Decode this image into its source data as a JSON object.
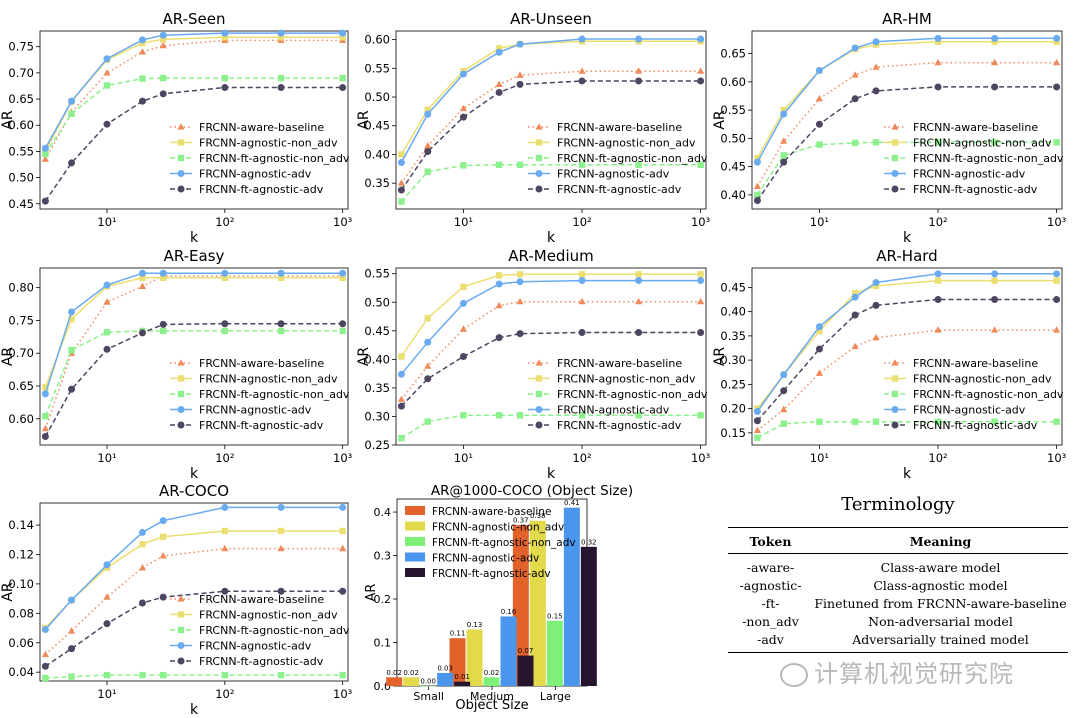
{
  "chart_data": [
    {
      "type": "line",
      "title": "AR-Seen",
      "xlabel": "k",
      "ylabel": "AR",
      "xscale": "log",
      "x": [
        3,
        5,
        10,
        20,
        30,
        100,
        300,
        1000
      ],
      "ylim": [
        0.44,
        0.78
      ],
      "yticks": [
        0.45,
        0.5,
        0.55,
        0.6,
        0.65,
        0.7,
        0.75
      ],
      "ytick_labels": [
        "0.45",
        "0.50",
        "0.55",
        "0.60",
        "0.65",
        "0.70",
        "0.75"
      ],
      "legend_position": "lower-right",
      "series": [
        {
          "name": "FRCNN-aware-baseline",
          "values": [
            0.535,
            0.625,
            0.7,
            0.74,
            0.752,
            0.762,
            0.762,
            0.762
          ]
        },
        {
          "name": "FRCNN-agnostic-non_adv",
          "values": [
            0.55,
            0.645,
            0.725,
            0.757,
            0.764,
            0.768,
            0.768,
            0.768
          ]
        },
        {
          "name": "FRCNN-ft-agnostic-non_adv",
          "values": [
            0.545,
            0.622,
            0.676,
            0.689,
            0.69,
            0.69,
            0.69,
            0.69
          ]
        },
        {
          "name": "FRCNN-agnostic-adv",
          "values": [
            0.556,
            0.646,
            0.727,
            0.763,
            0.772,
            0.776,
            0.776,
            0.776
          ]
        },
        {
          "name": "FRCNN-ft-agnostic-adv",
          "values": [
            0.455,
            0.528,
            0.602,
            0.646,
            0.66,
            0.672,
            0.672,
            0.672
          ]
        }
      ]
    },
    {
      "type": "line",
      "title": "AR-Unseen",
      "xlabel": "k",
      "ylabel": "AR",
      "xscale": "log",
      "x": [
        3,
        5,
        10,
        20,
        30,
        100,
        300,
        1000
      ],
      "ylim": [
        0.305,
        0.615
      ],
      "yticks": [
        0.35,
        0.4,
        0.45,
        0.5,
        0.55,
        0.6
      ],
      "ytick_labels": [
        "0.35",
        "0.40",
        "0.45",
        "0.50",
        "0.55",
        "0.60"
      ],
      "legend_position": "lower-right",
      "series": [
        {
          "name": "FRCNN-aware-baseline",
          "values": [
            0.35,
            0.415,
            0.48,
            0.522,
            0.538,
            0.545,
            0.545,
            0.545
          ]
        },
        {
          "name": "FRCNN-agnostic-non_adv",
          "values": [
            0.4,
            0.478,
            0.545,
            0.585,
            0.592,
            0.597,
            0.597,
            0.597
          ]
        },
        {
          "name": "FRCNN-ft-agnostic-non_adv",
          "values": [
            0.318,
            0.37,
            0.381,
            0.382,
            0.382,
            0.382,
            0.382,
            0.382
          ]
        },
        {
          "name": "FRCNN-agnostic-adv",
          "values": [
            0.386,
            0.47,
            0.54,
            0.578,
            0.592,
            0.601,
            0.601,
            0.601
          ]
        },
        {
          "name": "FRCNN-ft-agnostic-adv",
          "values": [
            0.338,
            0.405,
            0.465,
            0.508,
            0.522,
            0.528,
            0.528,
            0.528
          ]
        }
      ]
    },
    {
      "type": "line",
      "title": "AR-HM",
      "xlabel": "k",
      "ylabel": "AR",
      "xscale": "log",
      "x": [
        3,
        5,
        10,
        20,
        30,
        100,
        300,
        1000
      ],
      "ylim": [
        0.375,
        0.69
      ],
      "yticks": [
        0.4,
        0.45,
        0.5,
        0.55,
        0.6,
        0.65
      ],
      "ytick_labels": [
        "0.40",
        "0.45",
        "0.50",
        "0.55",
        "0.60",
        "0.65"
      ],
      "legend_position": "lower-right",
      "series": [
        {
          "name": "FRCNN-aware-baseline",
          "values": [
            0.415,
            0.495,
            0.57,
            0.612,
            0.626,
            0.634,
            0.634,
            0.634
          ]
        },
        {
          "name": "FRCNN-agnostic-non_adv",
          "values": [
            0.465,
            0.55,
            0.62,
            0.658,
            0.666,
            0.671,
            0.671,
            0.671
          ]
        },
        {
          "name": "FRCNN-ft-agnostic-non_adv",
          "values": [
            0.4,
            0.47,
            0.489,
            0.492,
            0.493,
            0.493,
            0.493,
            0.493
          ]
        },
        {
          "name": "FRCNN-agnostic-adv",
          "values": [
            0.458,
            0.543,
            0.62,
            0.66,
            0.671,
            0.677,
            0.677,
            0.677
          ]
        },
        {
          "name": "FRCNN-ft-agnostic-adv",
          "values": [
            0.39,
            0.458,
            0.525,
            0.57,
            0.584,
            0.591,
            0.591,
            0.591
          ]
        }
      ]
    },
    {
      "type": "line",
      "title": "AR-Easy",
      "xlabel": "k",
      "ylabel": "AR",
      "xscale": "log",
      "x": [
        3,
        5,
        10,
        20,
        30,
        100,
        300,
        1000
      ],
      "ylim": [
        0.56,
        0.83
      ],
      "yticks": [
        0.6,
        0.65,
        0.7,
        0.75,
        0.8
      ],
      "ytick_labels": [
        "0.60",
        "0.65",
        "0.70",
        "0.75",
        "0.80"
      ],
      "legend_position": "lower-right",
      "series": [
        {
          "name": "FRCNN-aware-baseline",
          "values": [
            0.585,
            0.7,
            0.778,
            0.802,
            0.818,
            0.818,
            0.818,
            0.818
          ]
        },
        {
          "name": "FRCNN-agnostic-non_adv",
          "values": [
            0.648,
            0.752,
            0.802,
            0.815,
            0.815,
            0.815,
            0.815,
            0.815
          ]
        },
        {
          "name": "FRCNN-ft-agnostic-non_adv",
          "values": [
            0.604,
            0.705,
            0.732,
            0.734,
            0.734,
            0.734,
            0.734,
            0.734
          ]
        },
        {
          "name": "FRCNN-agnostic-adv",
          "values": [
            0.638,
            0.763,
            0.804,
            0.822,
            0.822,
            0.822,
            0.822,
            0.822
          ]
        },
        {
          "name": "FRCNN-ft-agnostic-adv",
          "values": [
            0.573,
            0.645,
            0.706,
            0.731,
            0.744,
            0.745,
            0.745,
            0.745
          ]
        }
      ]
    },
    {
      "type": "line",
      "title": "AR-Medium",
      "xlabel": "k",
      "ylabel": "AR",
      "xscale": "log",
      "x": [
        3,
        5,
        10,
        20,
        30,
        100,
        300,
        1000
      ],
      "ylim": [
        0.25,
        0.56
      ],
      "yticks": [
        0.25,
        0.3,
        0.35,
        0.4,
        0.45,
        0.5,
        0.55
      ],
      "ytick_labels": [
        "0.25",
        "0.30",
        "0.35",
        "0.40",
        "0.45",
        "0.50",
        "0.55"
      ],
      "legend_position": "lower-right",
      "series": [
        {
          "name": "FRCNN-aware-baseline",
          "values": [
            0.33,
            0.388,
            0.453,
            0.494,
            0.501,
            0.501,
            0.501,
            0.501
          ]
        },
        {
          "name": "FRCNN-agnostic-non_adv",
          "values": [
            0.405,
            0.472,
            0.527,
            0.547,
            0.549,
            0.549,
            0.549,
            0.549
          ]
        },
        {
          "name": "FRCNN-ft-agnostic-non_adv",
          "values": [
            0.262,
            0.291,
            0.302,
            0.302,
            0.302,
            0.302,
            0.302,
            0.302
          ]
        },
        {
          "name": "FRCNN-agnostic-adv",
          "values": [
            0.374,
            0.43,
            0.498,
            0.532,
            0.536,
            0.538,
            0.538,
            0.538
          ]
        },
        {
          "name": "FRCNN-ft-agnostic-adv",
          "values": [
            0.318,
            0.366,
            0.405,
            0.438,
            0.445,
            0.447,
            0.447,
            0.447
          ]
        }
      ]
    },
    {
      "type": "line",
      "title": "AR-Hard",
      "xlabel": "k",
      "ylabel": "AR",
      "xscale": "log",
      "x": [
        3,
        5,
        10,
        20,
        30,
        100,
        300,
        1000
      ],
      "ylim": [
        0.125,
        0.49
      ],
      "yticks": [
        0.15,
        0.2,
        0.25,
        0.3,
        0.35,
        0.4,
        0.45
      ],
      "ytick_labels": [
        "0.15",
        "0.20",
        "0.25",
        "0.30",
        "0.35",
        "0.40",
        "0.45"
      ],
      "legend_position": "lower-right",
      "series": [
        {
          "name": "FRCNN-aware-baseline",
          "values": [
            0.155,
            0.198,
            0.273,
            0.328,
            0.346,
            0.362,
            0.362,
            0.362
          ]
        },
        {
          "name": "FRCNN-agnostic-non_adv",
          "values": [
            0.2,
            0.27,
            0.36,
            0.438,
            0.453,
            0.464,
            0.464,
            0.464
          ]
        },
        {
          "name": "FRCNN-ft-agnostic-non_adv",
          "values": [
            0.14,
            0.169,
            0.173,
            0.173,
            0.173,
            0.173,
            0.173,
            0.173
          ]
        },
        {
          "name": "FRCNN-agnostic-adv",
          "values": [
            0.194,
            0.27,
            0.369,
            0.43,
            0.46,
            0.478,
            0.478,
            0.478
          ]
        },
        {
          "name": "FRCNN-ft-agnostic-adv",
          "values": [
            0.175,
            0.237,
            0.323,
            0.393,
            0.413,
            0.425,
            0.425,
            0.425
          ]
        }
      ]
    },
    {
      "type": "line",
      "title": "AR-COCO",
      "xlabel": "k",
      "ylabel": "AR",
      "xscale": "log",
      "x": [
        3,
        5,
        10,
        20,
        30,
        100,
        300,
        1000
      ],
      "ylim": [
        0.034,
        0.155
      ],
      "yticks": [
        0.04,
        0.06,
        0.08,
        0.1,
        0.12,
        0.14
      ],
      "ytick_labels": [
        "0.04",
        "0.06",
        "0.08",
        "0.10",
        "0.12",
        "0.14"
      ],
      "legend_position": "lower-right",
      "series": [
        {
          "name": "FRCNN-aware-baseline",
          "values": [
            0.052,
            0.068,
            0.091,
            0.111,
            0.119,
            0.124,
            0.124,
            0.124
          ]
        },
        {
          "name": "FRCNN-agnostic-non_adv",
          "values": [
            0.07,
            0.089,
            0.111,
            0.127,
            0.132,
            0.136,
            0.136,
            0.136
          ]
        },
        {
          "name": "FRCNN-ft-agnostic-non_adv",
          "values": [
            0.036,
            0.037,
            0.038,
            0.038,
            0.038,
            0.038,
            0.038,
            0.038
          ]
        },
        {
          "name": "FRCNN-agnostic-adv",
          "values": [
            0.069,
            0.089,
            0.113,
            0.135,
            0.143,
            0.152,
            0.152,
            0.152
          ]
        },
        {
          "name": "FRCNN-ft-agnostic-adv",
          "values": [
            0.044,
            0.056,
            0.073,
            0.087,
            0.091,
            0.095,
            0.095,
            0.095
          ]
        }
      ]
    },
    {
      "type": "bar",
      "title": "AR@1000-COCO (Object Size)",
      "xlabel": "Object Size",
      "ylabel": "AR",
      "categories": [
        "Small",
        "Medium",
        "Large"
      ],
      "ylim": [
        0,
        0.43
      ],
      "yticks": [
        0.0,
        0.1,
        0.2,
        0.3,
        0.4
      ],
      "ytick_labels": [
        "0.0",
        "0.1",
        "0.2",
        "0.3",
        "0.4"
      ],
      "legend_position": "top-left",
      "series": [
        {
          "name": "FRCNN-aware-baseline",
          "values": [
            0.02,
            0.11,
            0.37
          ],
          "labels": [
            "0.02",
            "0.11",
            "0.37"
          ]
        },
        {
          "name": "FRCNN-agnostic-non_adv",
          "values": [
            0.02,
            0.13,
            0.38
          ],
          "labels": [
            "0.02",
            "0.13",
            "0.38"
          ]
        },
        {
          "name": "FRCNN-ft-agnostic-non_adv",
          "values": [
            0.0,
            0.02,
            0.15
          ],
          "labels": [
            "0.00",
            "0.02",
            "0.15"
          ]
        },
        {
          "name": "FRCNN-agnostic-adv",
          "values": [
            0.03,
            0.16,
            0.41
          ],
          "labels": [
            "0.03",
            "0.16",
            "0.41"
          ]
        },
        {
          "name": "FRCNN-ft-agnostic-adv",
          "values": [
            0.01,
            0.07,
            0.32
          ],
          "labels": [
            "0.01",
            "0.07",
            "0.32"
          ]
        }
      ]
    }
  ],
  "style": {
    "line_colors": [
      "#ef8a5a",
      "#ecdf72",
      "#8cf08c",
      "#6aaaf0",
      "#4e4560"
    ],
    "bar_colors": [
      "#e2622b",
      "#e2d94b",
      "#7ef07a",
      "#4a96ee",
      "#26152e"
    ],
    "line_styles": [
      "dotted",
      "solid",
      "dashed",
      "solid",
      "dashed"
    ],
    "markers": [
      "triangle",
      "square",
      "square",
      "circle",
      "circle"
    ],
    "x_tick_labels": [
      "10¹",
      "10²",
      "10³"
    ]
  },
  "terminology": {
    "title": "Terminology",
    "headers": {
      "token": "Token",
      "meaning": "Meaning"
    },
    "rows": [
      {
        "token": "-aware-",
        "meaning": "Class-aware model"
      },
      {
        "token": "-agnostic-",
        "meaning": "Class-agnostic model"
      },
      {
        "token": "-ft-",
        "meaning": "Finetuned from FRCNN-aware-baseline"
      },
      {
        "token": "-non_adv",
        "meaning": "Non-adversarial model"
      },
      {
        "token": "-adv",
        "meaning": "Adversarially trained model"
      }
    ]
  },
  "watermark": {
    "text": "计算机视觉研究院"
  }
}
